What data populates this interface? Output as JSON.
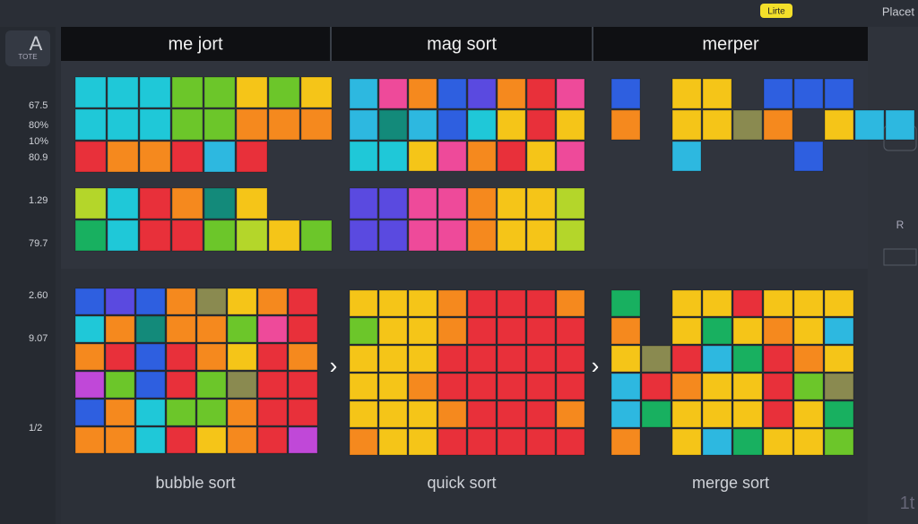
{
  "header": {
    "badge": "Lirte",
    "place": "Placet"
  },
  "sidebar": {
    "logo": "TOTE",
    "items": [
      "67.5",
      "80%",
      "10%",
      "80.9",
      "1.29",
      "79.7",
      "2.60",
      "9.07",
      "1/2"
    ]
  },
  "panels": [
    {
      "title": "me jort",
      "caption": "bubble sort"
    },
    {
      "title": "mag sort",
      "caption": "quick sort"
    },
    {
      "title": "merper",
      "caption": "merge sort"
    }
  ],
  "right": {
    "label": "R",
    "corner": "1t"
  },
  "separator": "›"
}
